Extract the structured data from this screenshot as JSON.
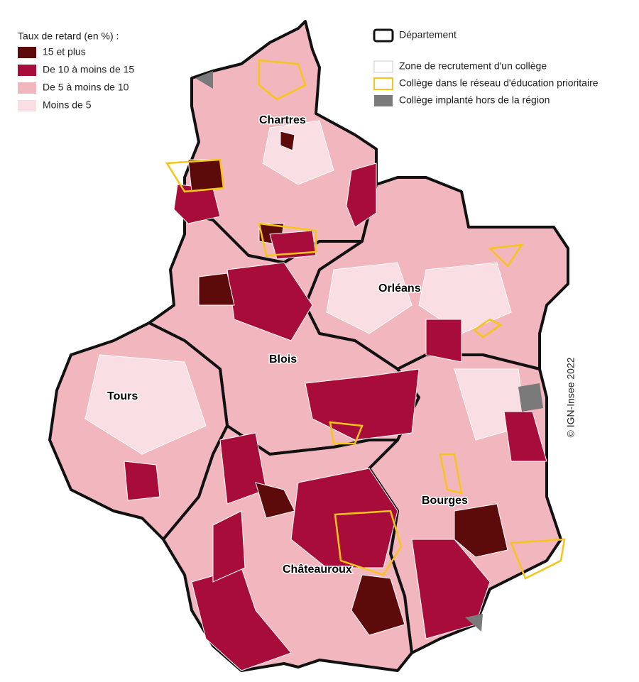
{
  "legend": {
    "title": "Taux de retard (en %) :",
    "items": [
      {
        "label": "15 et plus"
      },
      {
        "label": "De 10 à moins de 15"
      },
      {
        "label": "De 5 à moins de 10"
      },
      {
        "label": "Moins de 5"
      }
    ]
  },
  "legend2": {
    "items": [
      {
        "label": "Département"
      },
      {
        "label": "Zone de recrutement d'un collège"
      },
      {
        "label": "Collège dans le réseau d'éducation prioritaire"
      },
      {
        "label": "Collège implanté hors de la région"
      }
    ]
  },
  "cities": [
    {
      "label": "Chartres"
    },
    {
      "label": "Orléans"
    },
    {
      "label": "Blois"
    },
    {
      "label": "Tours"
    },
    {
      "label": "Bourges"
    },
    {
      "label": "Châteauroux"
    }
  ],
  "credit": "© IGN-Insee 2022"
}
